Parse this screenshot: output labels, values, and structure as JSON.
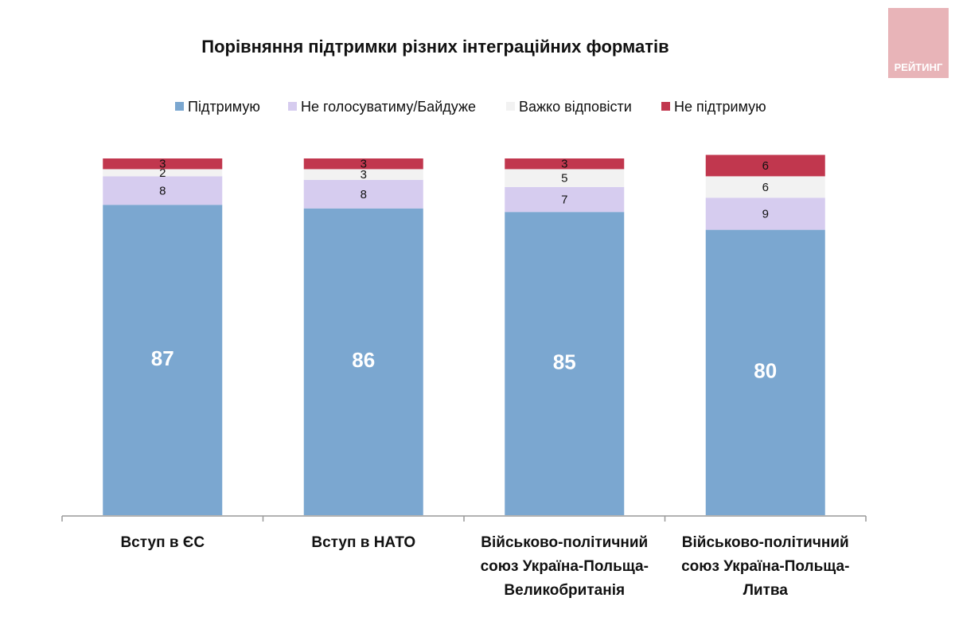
{
  "chart_data": {
    "type": "stacked_bar",
    "title": "Порівняння підтримки різних інтеграційних форматів",
    "categories": [
      "Вступ в ЄС",
      "Вступ в  НАТО",
      "Військово-політичний союз Україна-Польща-Великобританія",
      "Військово-політичний союз Україна-Польща-Литва"
    ],
    "series": [
      {
        "name": "Підтримую",
        "color": "#7ba7d0",
        "values": [
          87,
          86,
          85,
          80
        ]
      },
      {
        "name": "Не голосуватиму/Байдуже",
        "color": "#d6ccef",
        "values": [
          8,
          8,
          7,
          9
        ]
      },
      {
        "name": "Важко відповісти",
        "color": "#f2f2f2",
        "values": [
          2,
          3,
          5,
          6
        ]
      },
      {
        "name": "Не підтримую",
        "color": "#c1374e",
        "values": [
          3,
          3,
          3,
          6
        ]
      }
    ],
    "ylim": [
      0,
      100
    ],
    "legend": "top"
  },
  "logo": "РЕЙТИНГ"
}
